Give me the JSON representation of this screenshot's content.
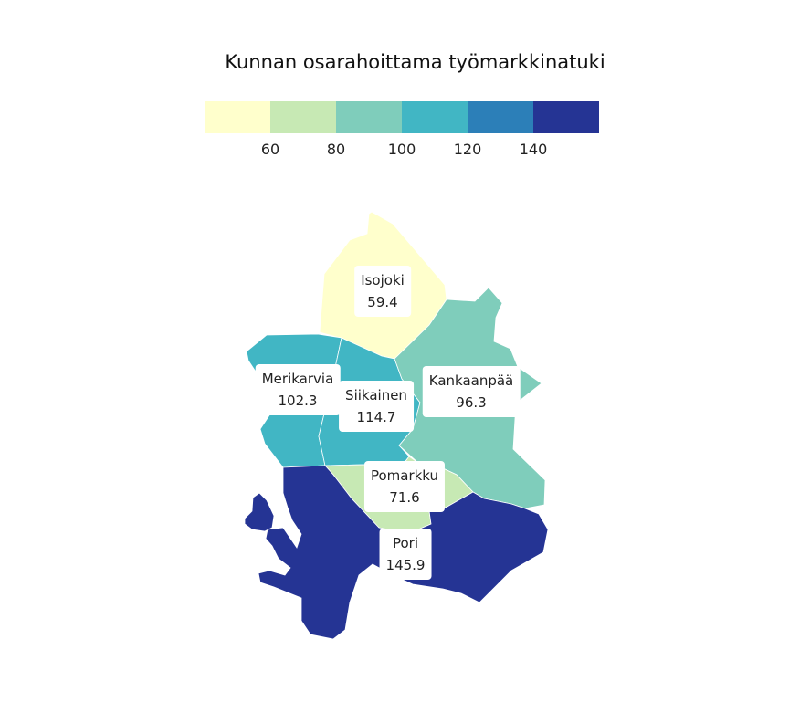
{
  "title": "Kunnan osarahoittama työmarkkinatuki",
  "legend": {
    "colors": [
      "#ffffcc",
      "#c7e9b4",
      "#7fcdbb",
      "#41b6c4",
      "#2c7fb8",
      "#253494"
    ],
    "ticks": [
      "60",
      "80",
      "100",
      "120",
      "140"
    ]
  },
  "municipalities": [
    {
      "name": "Isojoki",
      "value": "59.4",
      "color": "#ffffcc"
    },
    {
      "name": "Merikarvia",
      "value": "102.3",
      "color": "#41b6c4"
    },
    {
      "name": "Siikainen",
      "value": "114.7",
      "color": "#41b6c4"
    },
    {
      "name": "Kankaanpää",
      "value": "96.3",
      "color": "#7fcdbb"
    },
    {
      "name": "Pomarkku",
      "value": "71.6",
      "color": "#c7e9b4"
    },
    {
      "name": "Pori",
      "value": "145.9",
      "color": "#253494"
    }
  ]
}
